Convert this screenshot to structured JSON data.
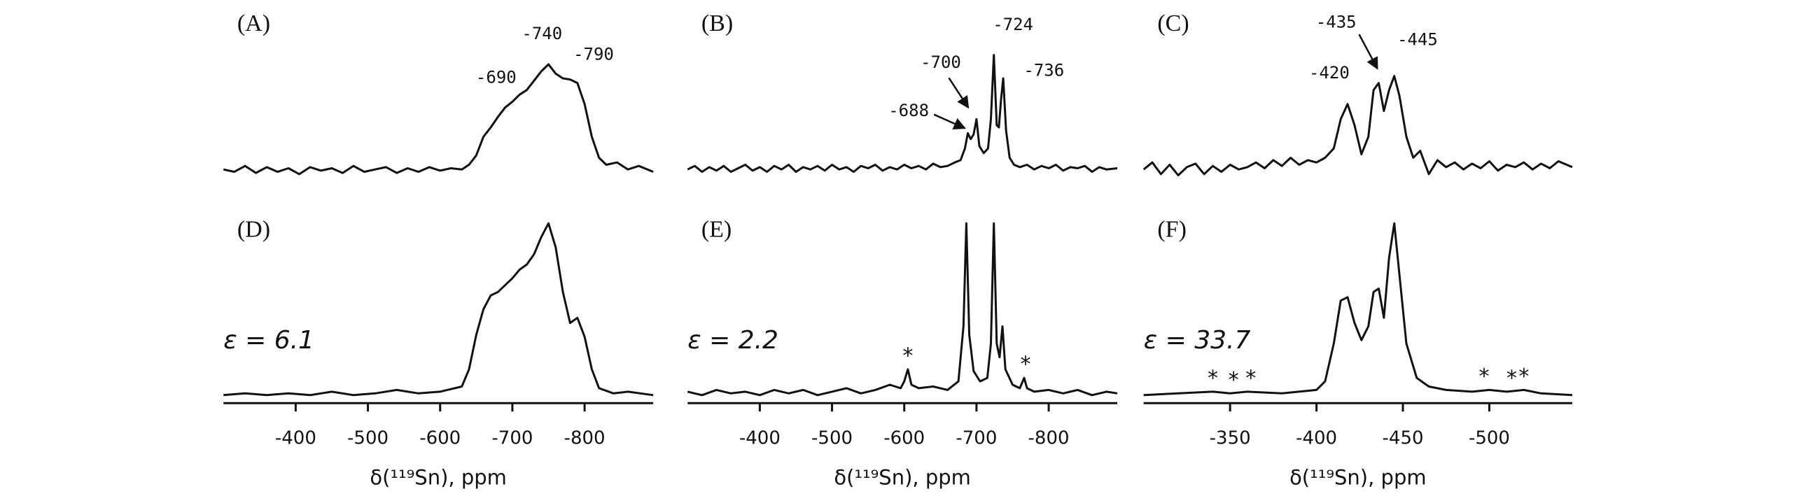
{
  "chart_data": [
    {
      "type": "line",
      "title": "(A)",
      "peak_labels": [
        -690,
        -740,
        -790
      ],
      "xlim": [
        -300,
        -895
      ],
      "ylim": [
        0,
        1
      ],
      "x": [
        -300,
        -315,
        -330,
        -345,
        -360,
        -375,
        -390,
        -405,
        -420,
        -435,
        -450,
        -465,
        -480,
        -495,
        -510,
        -525,
        -540,
        -555,
        -570,
        -585,
        -600,
        -615,
        -630,
        -640,
        -650,
        -660,
        -670,
        -680,
        -690,
        -700,
        -710,
        -720,
        -730,
        -740,
        -750,
        -760,
        -770,
        -780,
        -790,
        -800,
        -810,
        -820,
        -830,
        -845,
        -860,
        -875,
        -895
      ],
      "values": [
        0.02,
        0.0,
        0.05,
        -0.01,
        0.04,
        0.0,
        0.03,
        -0.02,
        0.04,
        0.01,
        0.03,
        -0.01,
        0.05,
        0.0,
        0.02,
        0.04,
        -0.01,
        0.03,
        0.0,
        0.04,
        0.01,
        0.03,
        0.02,
        0.06,
        0.14,
        0.3,
        0.38,
        0.47,
        0.55,
        0.6,
        0.66,
        0.7,
        0.78,
        0.86,
        0.92,
        0.84,
        0.8,
        0.79,
        0.76,
        0.58,
        0.3,
        0.12,
        0.06,
        0.08,
        0.02,
        0.05,
        0.0
      ]
    },
    {
      "type": "line",
      "title": "(B)",
      "peak_labels": [
        -688,
        -700,
        -724,
        -736
      ],
      "xlim": [
        -300,
        -895
      ],
      "ylim": [
        0,
        1
      ],
      "x": [
        -300,
        -310,
        -320,
        -330,
        -340,
        -350,
        -360,
        -370,
        -380,
        -390,
        -400,
        -410,
        -420,
        -430,
        -440,
        -450,
        -460,
        -470,
        -480,
        -490,
        -500,
        -510,
        -520,
        -530,
        -540,
        -550,
        -560,
        -570,
        -580,
        -590,
        -600,
        -610,
        -620,
        -630,
        -640,
        -650,
        -660,
        -670,
        -678,
        -684,
        -688,
        -692,
        -696,
        -700,
        -704,
        -710,
        -716,
        -720,
        -724,
        -728,
        -731,
        -734,
        -737,
        -741,
        -746,
        -752,
        -760,
        -770,
        -780,
        -790,
        -800,
        -810,
        -820,
        -830,
        -840,
        -850,
        -860,
        -870,
        -880,
        -895
      ],
      "values": [
        0.02,
        0.05,
        0.0,
        0.04,
        0.01,
        0.05,
        0.0,
        0.03,
        0.06,
        0.01,
        0.04,
        0.0,
        0.05,
        0.02,
        0.06,
        0.0,
        0.04,
        0.02,
        0.05,
        0.01,
        0.06,
        0.02,
        0.04,
        0.0,
        0.05,
        0.03,
        0.06,
        0.01,
        0.04,
        0.02,
        0.06,
        0.03,
        0.05,
        0.02,
        0.07,
        0.04,
        0.05,
        0.08,
        0.1,
        0.2,
        0.33,
        0.28,
        0.32,
        0.45,
        0.22,
        0.16,
        0.2,
        0.45,
        1.0,
        0.4,
        0.38,
        0.62,
        0.8,
        0.35,
        0.12,
        0.06,
        0.04,
        0.06,
        0.02,
        0.05,
        0.03,
        0.06,
        0.01,
        0.04,
        0.03,
        0.05,
        0.0,
        0.04,
        0.02,
        0.03
      ]
    },
    {
      "type": "line",
      "title": "(C)",
      "peak_labels": [
        -420,
        -435,
        -445
      ],
      "xlim": [
        -300,
        -548
      ],
      "ylim": [
        0,
        1
      ],
      "x": [
        -300,
        -305,
        -310,
        -315,
        -320,
        -325,
        -330,
        -335,
        -340,
        -345,
        -350,
        -355,
        -360,
        -365,
        -370,
        -375,
        -380,
        -385,
        -390,
        -395,
        -400,
        -405,
        -410,
        -414,
        -418,
        -422,
        -426,
        -430,
        -433,
        -436,
        -439,
        -442,
        -445,
        -448,
        -452,
        -456,
        -460,
        -465,
        -470,
        -475,
        -480,
        -485,
        -490,
        -495,
        -500,
        -505,
        -510,
        -515,
        -520,
        -525,
        -530,
        -535,
        -540,
        -548
      ],
      "values": [
        0.02,
        0.08,
        -0.02,
        0.06,
        -0.03,
        0.04,
        0.07,
        -0.02,
        0.05,
        0.0,
        0.06,
        0.02,
        0.04,
        0.08,
        0.03,
        0.1,
        0.05,
        0.12,
        0.06,
        0.1,
        0.08,
        0.12,
        0.2,
        0.45,
        0.58,
        0.4,
        0.15,
        0.3,
        0.7,
        0.76,
        0.52,
        0.7,
        0.82,
        0.65,
        0.3,
        0.12,
        0.18,
        -0.02,
        0.1,
        0.04,
        0.08,
        0.02,
        0.07,
        0.03,
        0.09,
        0.01,
        0.06,
        0.04,
        0.08,
        0.02,
        0.07,
        0.03,
        0.09,
        0.04
      ]
    },
    {
      "type": "line",
      "title": "(D)",
      "annotation": "ε = 6.1",
      "xlabel": "δ(¹¹⁹Sn), ppm",
      "xlim": [
        -300,
        -895
      ],
      "ylim": [
        0,
        1
      ],
      "xticks": [
        -400,
        -500,
        -600,
        -700,
        -800
      ],
      "x": [
        -300,
        -330,
        -360,
        -390,
        -420,
        -450,
        -480,
        -510,
        -540,
        -570,
        -600,
        -620,
        -630,
        -640,
        -650,
        -660,
        -670,
        -680,
        -690,
        -700,
        -710,
        -720,
        -730,
        -740,
        -750,
        -760,
        -770,
        -780,
        -790,
        -800,
        -810,
        -820,
        -840,
        -860,
        -895
      ],
      "values": [
        0.0,
        0.01,
        0.0,
        0.01,
        0.0,
        0.02,
        0.0,
        0.01,
        0.03,
        0.01,
        0.02,
        0.04,
        0.05,
        0.15,
        0.35,
        0.5,
        0.58,
        0.6,
        0.64,
        0.68,
        0.73,
        0.76,
        0.82,
        0.92,
        1.0,
        0.86,
        0.6,
        0.42,
        0.45,
        0.34,
        0.15,
        0.04,
        0.01,
        0.02,
        0.0
      ]
    },
    {
      "type": "line",
      "title": "(E)",
      "annotation": "ε = 2.2",
      "xlabel": "δ(¹¹⁹Sn), ppm",
      "xlim": [
        -300,
        -895
      ],
      "ylim": [
        0,
        1
      ],
      "xticks": [
        -400,
        -500,
        -600,
        -700,
        -800
      ],
      "sideband_marker": "*",
      "sidebands": [
        -605,
        -768
      ],
      "x": [
        -300,
        -320,
        -340,
        -360,
        -380,
        -400,
        -420,
        -440,
        -460,
        -480,
        -500,
        -520,
        -540,
        -560,
        -580,
        -595,
        -600,
        -605,
        -610,
        -620,
        -640,
        -660,
        -675,
        -682,
        -686,
        -690,
        -696,
        -705,
        -715,
        -720,
        -724,
        -728,
        -732,
        -736,
        -740,
        -750,
        -760,
        -766,
        -770,
        -780,
        -800,
        -820,
        -840,
        -860,
        -880,
        -895
      ],
      "values": [
        0.02,
        0.0,
        0.03,
        0.01,
        0.02,
        0.0,
        0.03,
        0.01,
        0.03,
        0.0,
        0.02,
        0.04,
        0.01,
        0.03,
        0.06,
        0.04,
        0.08,
        0.15,
        0.06,
        0.04,
        0.05,
        0.03,
        0.08,
        0.4,
        1.0,
        0.35,
        0.14,
        0.08,
        0.1,
        0.3,
        1.0,
        0.3,
        0.22,
        0.4,
        0.15,
        0.06,
        0.04,
        0.1,
        0.04,
        0.02,
        0.03,
        0.01,
        0.03,
        0.0,
        0.02,
        0.01
      ]
    },
    {
      "type": "line",
      "title": "(F)",
      "annotation": "ε = 33.7",
      "xlabel": "δ(¹¹⁹Sn), ppm",
      "xlim": [
        -300,
        -548
      ],
      "ylim": [
        0,
        1
      ],
      "xticks": [
        -350,
        -400,
        -450,
        -500
      ],
      "sideband_marker": "*",
      "sidebands": [
        -340,
        -352,
        -362,
        -497,
        -513,
        -520
      ],
      "x": [
        -300,
        -320,
        -340,
        -350,
        -360,
        -380,
        -400,
        -405,
        -410,
        -414,
        -418,
        -422,
        -426,
        -430,
        -433,
        -436,
        -439,
        -442,
        -445,
        -448,
        -452,
        -458,
        -465,
        -475,
        -490,
        -500,
        -510,
        -520,
        -530,
        -548
      ],
      "values": [
        0.0,
        0.01,
        0.02,
        0.01,
        0.02,
        0.01,
        0.03,
        0.08,
        0.3,
        0.55,
        0.57,
        0.42,
        0.32,
        0.4,
        0.6,
        0.62,
        0.45,
        0.8,
        1.0,
        0.7,
        0.3,
        0.1,
        0.05,
        0.03,
        0.02,
        0.03,
        0.02,
        0.03,
        0.01,
        0.0
      ]
    }
  ]
}
